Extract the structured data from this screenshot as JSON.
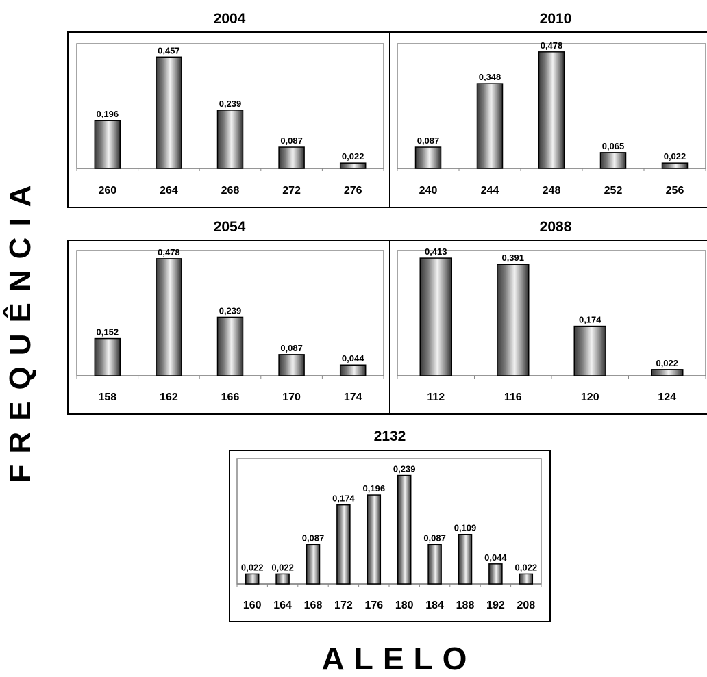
{
  "axis_labels": {
    "y": "FREQUÊNCIA",
    "x": "ALELO"
  },
  "chart_data": [
    {
      "type": "bar",
      "title": "2004",
      "categories": [
        "260",
        "264",
        "268",
        "272",
        "276"
      ],
      "values": [
        0.196,
        0.457,
        0.239,
        0.087,
        0.022
      ],
      "value_labels": [
        "0,196",
        "0,457",
        "0,239",
        "0,087",
        "0,022"
      ]
    },
    {
      "type": "bar",
      "title": "2010",
      "categories": [
        "240",
        "244",
        "248",
        "252",
        "256"
      ],
      "values": [
        0.087,
        0.348,
        0.478,
        0.065,
        0.022
      ],
      "value_labels": [
        "0,087",
        "0,348",
        "0,478",
        "0,065",
        "0,022"
      ]
    },
    {
      "type": "bar",
      "title": "2054",
      "categories": [
        "158",
        "162",
        "166",
        "170",
        "174"
      ],
      "values": [
        0.152,
        0.478,
        0.239,
        0.087,
        0.044
      ],
      "value_labels": [
        "0,152",
        "0,478",
        "0,239",
        "0,087",
        "0,044"
      ]
    },
    {
      "type": "bar",
      "title": "2088",
      "categories": [
        "112",
        "116",
        "120",
        "124"
      ],
      "values": [
        0.413,
        0.391,
        0.174,
        0.022
      ],
      "value_labels": [
        "0,413",
        "0,391",
        "0,174",
        "0,022"
      ]
    },
    {
      "type": "bar",
      "title": "2132",
      "categories": [
        "160",
        "164",
        "168",
        "172",
        "176",
        "180",
        "184",
        "188",
        "192",
        "208"
      ],
      "values": [
        0.022,
        0.022,
        0.087,
        0.174,
        0.196,
        0.239,
        0.087,
        0.109,
        0.044,
        0.022
      ],
      "value_labels": [
        "0,022",
        "0,022",
        "0,087",
        "0,174",
        "0,196",
        "0,239",
        "0,087",
        "0,109",
        "0,044",
        "0,022"
      ]
    }
  ]
}
